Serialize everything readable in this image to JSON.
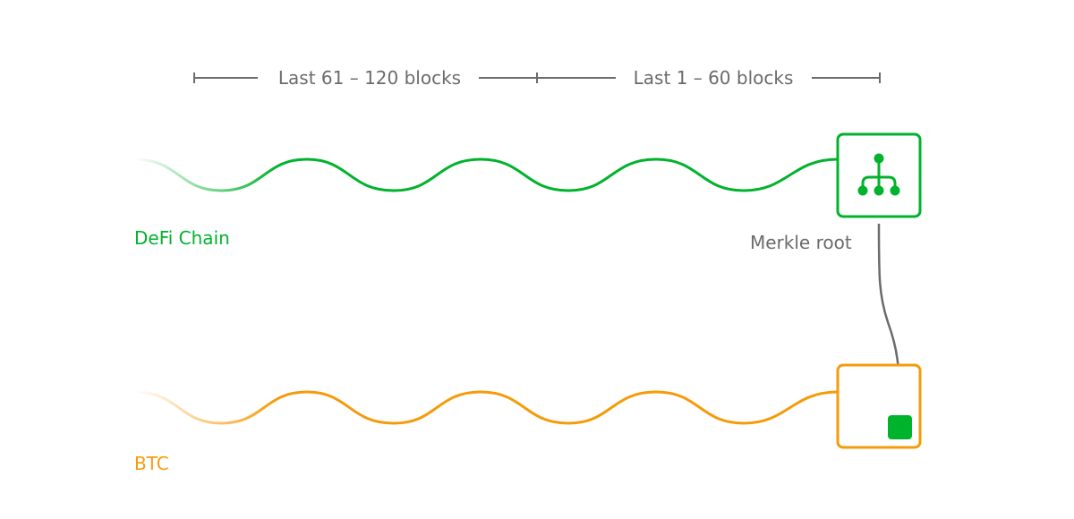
{
  "colors": {
    "defi": "#00b32c",
    "btc": "#f59b0b",
    "gray": "#6b6b6b"
  },
  "ranges": {
    "older": "Last 61 – 120 blocks",
    "recent": "Last 1 – 60 blocks"
  },
  "defi": {
    "label": "DeFi Chain",
    "box_icon": "merkle-tree-icon"
  },
  "merkle": {
    "label": "Merkle root"
  },
  "btc": {
    "label": "BTC",
    "box_icon": "anchored-block-icon"
  }
}
